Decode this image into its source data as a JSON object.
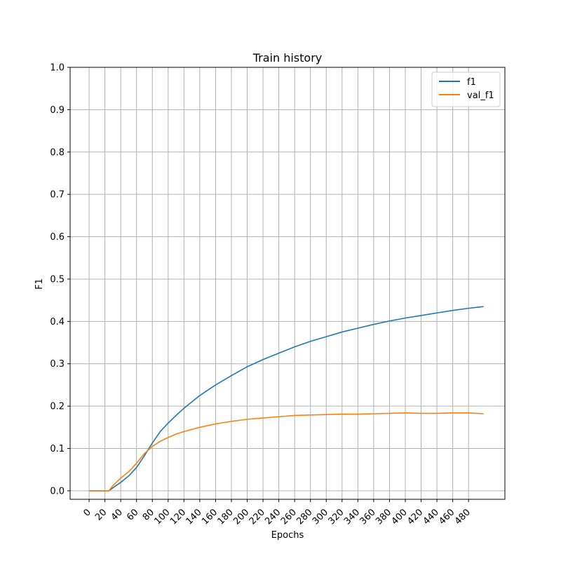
{
  "chart_data": {
    "type": "line",
    "title": "Train history",
    "xlabel": "Epochs",
    "ylabel": "F1",
    "xlim": [
      -24,
      526
    ],
    "ylim": [
      -0.02,
      1.0
    ],
    "x_ticks": [
      0,
      20,
      40,
      60,
      80,
      100,
      120,
      140,
      160,
      180,
      200,
      220,
      240,
      260,
      280,
      300,
      320,
      340,
      360,
      380,
      400,
      420,
      440,
      460,
      480
    ],
    "x_tick_labels": [
      "0",
      "20",
      "40",
      "60",
      "80",
      "100",
      "120",
      "140",
      "160",
      "180",
      "200",
      "220",
      "240",
      "260",
      "280",
      "300",
      "320",
      "340",
      "360",
      "380",
      "400",
      "420",
      "440",
      "460",
      "480"
    ],
    "y_ticks": [
      0.0,
      0.1,
      0.2,
      0.3,
      0.4,
      0.5,
      0.6,
      0.7,
      0.8,
      0.9,
      1.0
    ],
    "y_tick_labels": [
      "0.0",
      "0.1",
      "0.2",
      "0.3",
      "0.4",
      "0.5",
      "0.6",
      "0.7",
      "0.8",
      "0.9",
      "1.0"
    ],
    "grid": true,
    "legend_position": "top-right",
    "series": [
      {
        "name": "f1",
        "color": "#1f77b4",
        "x": [
          0,
          10,
          20,
          25,
          30,
          40,
          50,
          60,
          70,
          80,
          90,
          100,
          110,
          120,
          140,
          160,
          180,
          200,
          220,
          240,
          260,
          280,
          300,
          320,
          340,
          360,
          380,
          400,
          420,
          440,
          460,
          480,
          499
        ],
        "y": [
          0.0,
          0.0,
          0.0,
          0.0,
          0.007,
          0.02,
          0.035,
          0.055,
          0.083,
          0.113,
          0.14,
          0.16,
          0.178,
          0.195,
          0.225,
          0.25,
          0.272,
          0.293,
          0.31,
          0.325,
          0.34,
          0.353,
          0.364,
          0.375,
          0.384,
          0.393,
          0.401,
          0.408,
          0.414,
          0.42,
          0.426,
          0.431,
          0.435
        ]
      },
      {
        "name": "val_f1",
        "color": "#ff7f0e",
        "x": [
          0,
          10,
          20,
          25,
          30,
          40,
          50,
          60,
          70,
          80,
          90,
          100,
          110,
          120,
          140,
          160,
          180,
          200,
          220,
          240,
          260,
          280,
          300,
          320,
          340,
          360,
          380,
          400,
          420,
          440,
          460,
          480,
          499
        ],
        "y": [
          0.0,
          0.0,
          0.0,
          0.0,
          0.012,
          0.03,
          0.045,
          0.065,
          0.088,
          0.105,
          0.117,
          0.126,
          0.134,
          0.14,
          0.15,
          0.158,
          0.164,
          0.169,
          0.172,
          0.175,
          0.178,
          0.179,
          0.18,
          0.181,
          0.181,
          0.182,
          0.183,
          0.184,
          0.183,
          0.183,
          0.184,
          0.184,
          0.182
        ]
      }
    ]
  }
}
